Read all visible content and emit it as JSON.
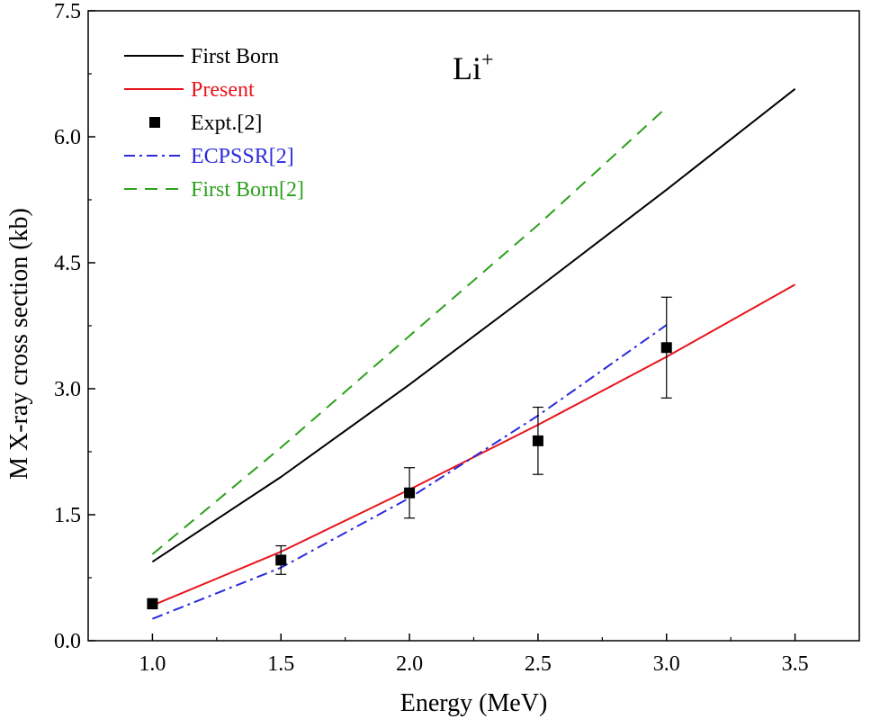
{
  "chart_data": {
    "type": "line",
    "title": "",
    "xlabel": "Energy (MeV)",
    "ylabel": "M X-ray cross section (kb)",
    "xlim": [
      0.75,
      3.75
    ],
    "ylim": [
      0,
      7.5
    ],
    "xticks": [
      1.0,
      1.5,
      2.0,
      2.5,
      3.0,
      3.5
    ],
    "xtick_labels": [
      "1.0",
      "1.5",
      "2.0",
      "2.5",
      "3.0",
      "3.5"
    ],
    "yticks": [
      0,
      1.5,
      3.0,
      4.5,
      6.0,
      7.5
    ],
    "ytick_labels": [
      "0.0",
      "1.5",
      "3.0",
      "4.5",
      "6.0",
      "7.5"
    ],
    "grid": false,
    "legend_position": "top-left",
    "annotation": {
      "base": "Li",
      "sup": "+"
    },
    "series": [
      {
        "name": "First Born",
        "color": "#000000",
        "style": "solid",
        "x": [
          1.0,
          1.5,
          2.0,
          2.5,
          3.0,
          3.5
        ],
        "y": [
          0.94,
          1.95,
          3.05,
          4.2,
          5.37,
          6.57
        ]
      },
      {
        "name": "Present",
        "color": "#e8141c",
        "style": "solid",
        "x": [
          1.0,
          1.5,
          2.0,
          2.5,
          3.0,
          3.5
        ],
        "y": [
          0.42,
          1.06,
          1.8,
          2.57,
          3.38,
          4.24
        ]
      },
      {
        "name": "Expt.[2]",
        "color": "#000000",
        "style": "marker",
        "x": [
          1.0,
          1.5,
          2.0,
          2.5,
          3.0
        ],
        "y": [
          0.44,
          0.96,
          1.76,
          2.38,
          3.49
        ],
        "yerr": [
          0.06,
          0.17,
          0.3,
          0.4,
          0.6
        ]
      },
      {
        "name": "ECPSSR[2]",
        "color": "#2b2bdc",
        "style": "dashdot",
        "x": [
          1.0,
          1.5,
          2.0,
          2.5,
          3.0
        ],
        "y": [
          0.26,
          0.87,
          1.7,
          2.68,
          3.76
        ]
      },
      {
        "name": "First Born[2]",
        "color": "#2ca01c",
        "style": "dashed",
        "x": [
          1.0,
          1.5,
          2.0,
          2.5,
          3.0
        ],
        "y": [
          1.03,
          2.3,
          3.63,
          4.95,
          6.35
        ]
      }
    ]
  }
}
